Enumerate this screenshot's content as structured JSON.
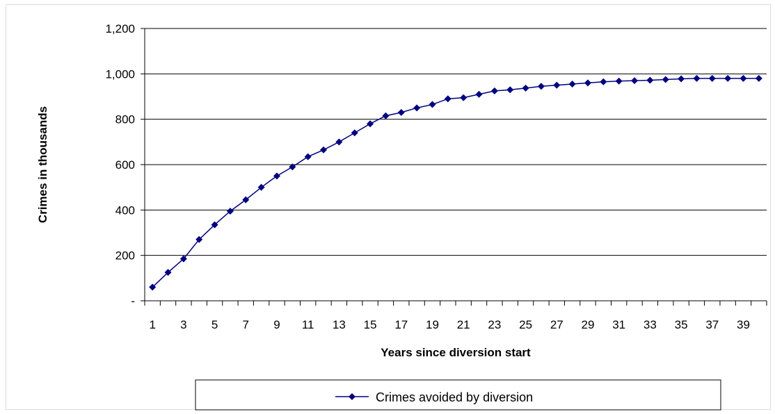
{
  "chart_data": {
    "type": "line",
    "title": "",
    "xlabel": "Years since diversion start",
    "ylabel": "Crimes in thousands",
    "ylim": [
      0,
      1200
    ],
    "yticks": [
      {
        "value": 0,
        "label": "-"
      },
      {
        "value": 200,
        "label": "200"
      },
      {
        "value": 400,
        "label": "400"
      },
      {
        "value": 600,
        "label": "600"
      },
      {
        "value": 800,
        "label": "800"
      },
      {
        "value": 1000,
        "label": "1,000"
      },
      {
        "value": 1200,
        "label": "1,200"
      }
    ],
    "xticks": [
      1,
      3,
      5,
      7,
      9,
      11,
      13,
      15,
      17,
      19,
      21,
      23,
      25,
      27,
      29,
      31,
      33,
      35,
      37,
      39
    ],
    "x": [
      1,
      2,
      3,
      4,
      5,
      6,
      7,
      8,
      9,
      10,
      11,
      12,
      13,
      14,
      15,
      16,
      17,
      18,
      19,
      20,
      21,
      22,
      23,
      24,
      25,
      26,
      27,
      28,
      29,
      30,
      31,
      32,
      33,
      34,
      35,
      36,
      37,
      38,
      39,
      40
    ],
    "grid": true,
    "legend_position": "bottom",
    "series": [
      {
        "name": "Crimes avoided by diversion",
        "color": "#000080",
        "values": [
          60,
          125,
          185,
          270,
          335,
          395,
          445,
          500,
          550,
          590,
          635,
          665,
          700,
          740,
          780,
          815,
          830,
          850,
          865,
          890,
          895,
          910,
          925,
          930,
          937,
          945,
          950,
          955,
          960,
          965,
          968,
          970,
          972,
          975,
          978,
          980,
          980,
          980,
          980,
          980
        ]
      }
    ]
  }
}
